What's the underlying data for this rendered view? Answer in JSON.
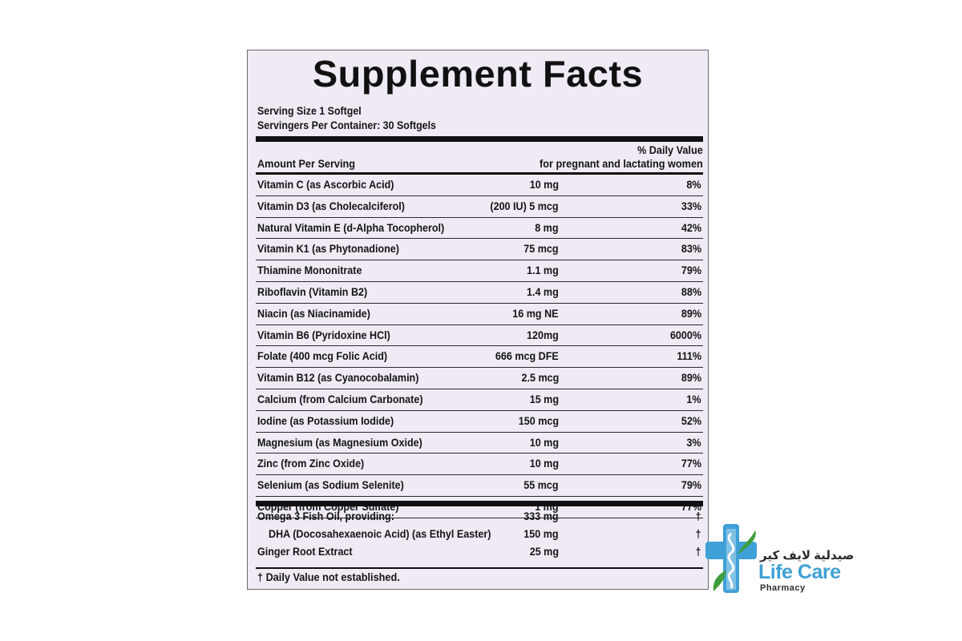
{
  "title": "Supplement Facts",
  "serving_size": "Serving Size 1 Softgel",
  "servings_per_container": "Servingers Per Container: 30 Softgels",
  "header": {
    "amount_per_serving": "Amount Per Serving",
    "daily_value_line1": "% Daily Value",
    "daily_value_line2": "for pregnant and lactating women"
  },
  "nutrients": [
    {
      "name": "Vitamin C (as Ascorbic Acid)",
      "amount": "10 mg",
      "dv": "8%"
    },
    {
      "name": "Vitamin D3 (as Cholecalciferol)",
      "amount": "(200 IU) 5 mcg",
      "dv": "33%"
    },
    {
      "name": "Natural Vitamin E (d-Alpha Tocopherol)",
      "amount": "8 mg",
      "dv": "42%"
    },
    {
      "name": "Vitamin K1 (as Phytonadione)",
      "amount": "75 mcg",
      "dv": "83%"
    },
    {
      "name": "Thiamine Mononitrate",
      "amount": "1.1 mg",
      "dv": "79%"
    },
    {
      "name": "Riboflavin (Vitamin B2)",
      "amount": "1.4 mg",
      "dv": "88%"
    },
    {
      "name": "Niacin (as Niacinamide)",
      "amount": "16 mg NE",
      "dv": "89%"
    },
    {
      "name": "Vitamin B6 (Pyridoxine HCl)",
      "amount": "120mg",
      "dv": "6000%"
    },
    {
      "name": "Folate (400 mcg Folic Acid)",
      "amount": "666 mcg DFE",
      "dv": "111%"
    },
    {
      "name": "Vitamin B12 (as Cyanocobalamin)",
      "amount": "2.5 mcg",
      "dv": "89%"
    },
    {
      "name": "Calcium (from Calcium Carbonate)",
      "amount": "15 mg",
      "dv": "1%"
    },
    {
      "name": "Iodine (as Potassium Iodide)",
      "amount": "150 mcg",
      "dv": "52%"
    },
    {
      "name": "Magnesium (as Magnesium Oxide)",
      "amount": "10 mg",
      "dv": "3%"
    },
    {
      "name": "Zinc (from Zinc Oxide)",
      "amount": "10 mg",
      "dv": "77%"
    },
    {
      "name": "Selenium (as Sodium Selenite)",
      "amount": "55 mcg",
      "dv": "79%"
    },
    {
      "name": "Copper (from Copper Sulfate)",
      "amount": "1 mg",
      "dv": "77%"
    }
  ],
  "other_ingredients": [
    {
      "name": "Omega 3 Fish Oil, providing:",
      "amount": "333 mg",
      "dv": "†"
    },
    {
      "name": "DHA (Docosahexaenoic Acid) (as Ethyl Easter)",
      "amount": "150 mg",
      "dv": "†"
    },
    {
      "name": "Ginger Root Extract",
      "amount": "25 mg",
      "dv": "†"
    }
  ],
  "footnote": "† Daily Value not established.",
  "logo": {
    "arabic": "صيدلية لايف كير",
    "name": "Life Care",
    "sub": "Pharmacy",
    "colors": {
      "blue": "#3ea0d6",
      "green": "#3f9e3a"
    }
  }
}
